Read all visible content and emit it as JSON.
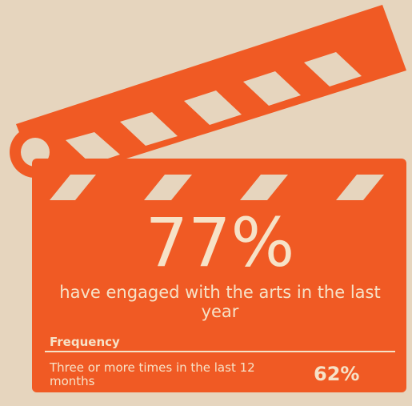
{
  "colors": {
    "background": "#e6d5be",
    "clapper": "#f05a24",
    "text": "#f6e2c7"
  },
  "icons": [
    "clapperboard-icon"
  ],
  "headline": {
    "value": "77%",
    "description": "have engaged with the arts in the last year"
  },
  "frequency": {
    "heading": "Frequency",
    "label": "Three or more times in the last 12 months",
    "value": "62%"
  }
}
